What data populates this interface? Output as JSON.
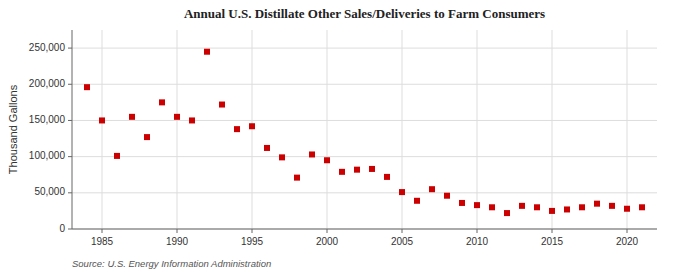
{
  "chart_data": {
    "type": "scatter",
    "title": "Annual U.S. Distillate Other Sales/Deliveries to Farm Consumers",
    "y_label": "Thousand Gallons",
    "annotations": [
      "Source: U.S. Energy Information Administration"
    ],
    "x": [
      1984,
      1985,
      1986,
      1987,
      1988,
      1989,
      1990,
      1991,
      1992,
      1993,
      1994,
      1995,
      1996,
      1997,
      1998,
      1999,
      2000,
      2001,
      2002,
      2003,
      2004,
      2005,
      2006,
      2007,
      2008,
      2009,
      2010,
      2011,
      2012,
      2013,
      2014,
      2015,
      2016,
      2017,
      2018,
      2019,
      2020,
      2021
    ],
    "values": [
      196000,
      150000,
      101000,
      155000,
      127000,
      175000,
      155000,
      150000,
      245000,
      172000,
      138000,
      142000,
      112000,
      99000,
      71000,
      103000,
      95000,
      79000,
      82000,
      83000,
      72000,
      51000,
      39000,
      55000,
      46000,
      36000,
      33000,
      30000,
      22000,
      32000,
      30000,
      25000,
      27000,
      30000,
      35000,
      32000,
      28000,
      30000
    ],
    "color": "#cc0000",
    "marker": "square",
    "xlim": [
      1983,
      2022
    ],
    "ylim": [
      0,
      275000
    ],
    "xticks": [
      1985,
      1990,
      1995,
      2000,
      2005,
      2010,
      2015,
      2020
    ],
    "yticks": [
      0,
      {
        "value": 50000,
        "label": "50,000"
      },
      {
        "value": 100000,
        "label": "100,000"
      },
      {
        "value": 150000,
        "label": "150,000"
      },
      {
        "value": 200000,
        "label": "200,000"
      },
      {
        "value": 250000,
        "label": "250,000"
      }
    ],
    "grid": true
  }
}
